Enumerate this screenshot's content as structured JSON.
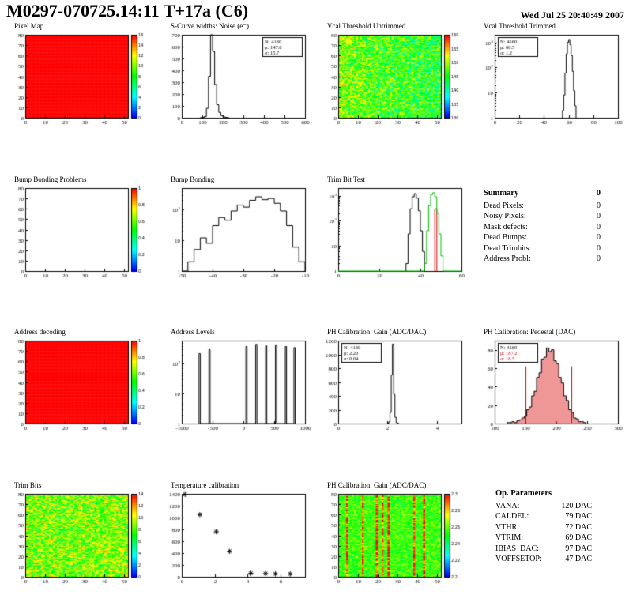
{
  "header": {
    "title": "M0297-070725.14:11 T+17a (C6)",
    "timestamp": "Wed Jul 25 20:40:49 2007"
  },
  "chart_data": [
    {
      "id": "pixel_map",
      "title": "Pixel Map",
      "type": "heatmap",
      "nx": 52,
      "ny": 80,
      "pattern": "flat",
      "seed": 11,
      "x": {
        "min": 0,
        "max": 52,
        "ticks": [
          0,
          10,
          20,
          30,
          40,
          50
        ]
      },
      "y": {
        "min": 0,
        "max": 80,
        "ticks": [
          0,
          10,
          20,
          30,
          40,
          50,
          60,
          70,
          80
        ]
      },
      "colorbar": {
        "labels": [
          "16",
          "14",
          "12",
          "10",
          "8",
          "6",
          "4",
          "2",
          "0"
        ]
      }
    },
    {
      "id": "scurve_noise",
      "title": "S-Curve widths: Noise (e⁻)",
      "type": "hist",
      "x": {
        "min": 0,
        "max": 600,
        "ticks": [
          0,
          100,
          200,
          300,
          400,
          500,
          600
        ]
      },
      "y": {
        "min": 0,
        "max": 700,
        "ticks": [
          0,
          100,
          200,
          300,
          400,
          500,
          600,
          700
        ]
      },
      "series": [
        {
          "color": "#000000",
          "binw": 10,
          "bins": [
            [
              90,
              1
            ],
            [
              100,
              3
            ],
            [
              110,
              10
            ],
            [
              120,
              80
            ],
            [
              130,
              350
            ],
            [
              140,
              700
            ],
            [
              150,
              560
            ],
            [
              160,
              280
            ],
            [
              170,
              110
            ],
            [
              180,
              45
            ],
            [
              190,
              18
            ],
            [
              200,
              8
            ],
            [
              210,
              3
            ],
            [
              220,
              1
            ]
          ]
        }
      ],
      "stats": {
        "pos": "right",
        "lines": [
          {
            "t": "N: 4160"
          },
          {
            "t": "μ: 147.6"
          },
          {
            "t": "σ: 15.7"
          }
        ]
      }
    },
    {
      "id": "vcal_untrimmed",
      "title": "Vcal Threshold Untrimmed",
      "type": "heatmap",
      "nx": 52,
      "ny": 80,
      "pattern": "noise",
      "mean": 0.55,
      "spread": 0.22,
      "grad": -0.12,
      "seed": 7,
      "x": {
        "min": 0,
        "max": 52,
        "ticks": [
          0,
          10,
          20,
          30,
          40,
          50
        ]
      },
      "y": {
        "min": 0,
        "max": 80,
        "ticks": [
          0,
          10,
          20,
          30,
          40,
          50,
          60,
          70,
          80
        ]
      },
      "colorbar": {
        "labels": [
          "160",
          "155",
          "150",
          "145",
          "140",
          "135",
          "130"
        ]
      }
    },
    {
      "id": "vcal_trimmed",
      "title": "Vcal Threshold Trimmed",
      "type": "hist",
      "x": {
        "min": 0,
        "max": 100,
        "ticks": [
          0,
          20,
          40,
          60,
          80,
          100
        ]
      },
      "y": {
        "min": 1,
        "max": 2000,
        "log": true
      },
      "series": [
        {
          "color": "#000000",
          "binw": 1,
          "bins": [
            [
              55,
              2
            ],
            [
              56,
              8
            ],
            [
              57,
              60
            ],
            [
              58,
              350
            ],
            [
              59,
              1000
            ],
            [
              60,
              1300
            ],
            [
              61,
              800
            ],
            [
              62,
              300
            ],
            [
              63,
              70
            ],
            [
              64,
              12
            ],
            [
              65,
              3
            ]
          ]
        }
      ],
      "stats": {
        "pos": "left",
        "lines": [
          {
            "t": "N: 4160"
          },
          {
            "t": "μ: 60.5"
          },
          {
            "t": "σ: 1.2"
          }
        ]
      }
    },
    {
      "id": "bump_problems",
      "title": "Bump Bonding Problems",
      "type": "heatmap",
      "nx": 52,
      "ny": 80,
      "pattern": "empty",
      "seed": 3,
      "x": {
        "min": 0,
        "max": 52,
        "ticks": [
          0,
          10,
          20,
          30,
          40,
          50
        ]
      },
      "y": {
        "min": 0,
        "max": 80,
        "ticks": [
          0,
          10,
          20,
          30,
          40,
          50,
          60,
          70,
          80
        ]
      },
      "colorbar": {
        "labels": [
          "1",
          "0.8",
          "0.6",
          "0.4",
          "0.2",
          "0"
        ]
      }
    },
    {
      "id": "bump_bonding",
      "title": "Bump Bonding",
      "type": "hist",
      "x": {
        "min": -50,
        "max": -10,
        "ticks": [
          -50,
          -40,
          -30,
          -20,
          -10
        ]
      },
      "y": {
        "min": 1,
        "max": 500,
        "log": true
      },
      "series": [
        {
          "color": "#000000",
          "binw": 2,
          "bins": [
            [
              -50,
              1
            ],
            [
              -48,
              2
            ],
            [
              -46,
              5
            ],
            [
              -44,
              12
            ],
            [
              -42,
              8
            ],
            [
              -40,
              30
            ],
            [
              -38,
              55
            ],
            [
              -36,
              45
            ],
            [
              -34,
              90
            ],
            [
              -32,
              140
            ],
            [
              -30,
              120
            ],
            [
              -28,
              200
            ],
            [
              -26,
              260
            ],
            [
              -24,
              210
            ],
            [
              -22,
              230
            ],
            [
              -20,
              160
            ],
            [
              -18,
              90
            ],
            [
              -16,
              30
            ],
            [
              -14,
              6
            ],
            [
              -12,
              2
            ]
          ]
        }
      ]
    },
    {
      "id": "trim_bit_test",
      "title": "Trim Bit Test",
      "type": "hist",
      "x": {
        "min": 0,
        "max": 60,
        "ticks": [
          0,
          20,
          40,
          60
        ]
      },
      "y": {
        "min": 1,
        "max": 2000,
        "log": true
      },
      "series": [
        {
          "color": "#000000",
          "binw": 1,
          "bins": [
            [
              33,
              2
            ],
            [
              34,
              30
            ],
            [
              35,
              300
            ],
            [
              36,
              900
            ],
            [
              37,
              1200
            ],
            [
              38,
              800
            ],
            [
              39,
              250
            ],
            [
              40,
              40
            ],
            [
              41,
              6
            ]
          ]
        },
        {
          "color": "#cc0000",
          "binw": 1,
          "bins": [
            [
              47,
              300
            ]
          ]
        },
        {
          "color": "#00bb00",
          "binw": 1,
          "baseline": true,
          "bins": [
            [
              42,
              2
            ],
            [
              43,
              40
            ],
            [
              44,
              400
            ],
            [
              45,
              1100
            ],
            [
              46,
              1300
            ],
            [
              47,
              900
            ],
            [
              48,
              200
            ],
            [
              49,
              30
            ],
            [
              50,
              4
            ]
          ]
        }
      ]
    },
    {
      "id": "address_decoding",
      "title": "Address decoding",
      "type": "heatmap",
      "nx": 52,
      "ny": 80,
      "pattern": "flat",
      "seed": 19,
      "x": {
        "min": 0,
        "max": 52,
        "ticks": [
          0,
          10,
          20,
          30,
          40,
          50
        ]
      },
      "y": {
        "min": 0,
        "max": 80,
        "ticks": [
          0,
          10,
          20,
          30,
          40,
          50,
          60,
          70,
          80
        ]
      },
      "colorbar": {
        "labels": [
          "1",
          "0.8",
          "0.6",
          "0.4",
          "0.2",
          "0"
        ]
      }
    },
    {
      "id": "address_levels",
      "title": "Address Levels",
      "type": "hist",
      "x": {
        "min": -1000,
        "max": 1000,
        "ticks": [
          -1000,
          -500,
          0,
          500,
          1000
        ]
      },
      "y": {
        "min": 1,
        "max": 600,
        "log": true
      },
      "series": [
        {
          "color": "#000000",
          "binw": 20,
          "bins": [
            [
              -720,
              220
            ],
            [
              -560,
              300
            ],
            [
              40,
              380
            ],
            [
              200,
              450
            ],
            [
              360,
              400
            ],
            [
              520,
              430
            ],
            [
              680,
              380
            ],
            [
              820,
              350
            ]
          ]
        }
      ]
    },
    {
      "id": "ph_gain_hist",
      "title": "PH Calibration: Gain (ADC/DAC)",
      "type": "hist",
      "x": {
        "min": 0,
        "max": 5,
        "ticks": [
          0,
          2,
          4
        ]
      },
      "y": {
        "min": 0,
        "max": 1200,
        "ticks": [
          0,
          200,
          400,
          600,
          800,
          1000,
          1200
        ]
      },
      "series": [
        {
          "color": "#000000",
          "binw": 0.05,
          "bins": [
            [
              2.0,
              3
            ],
            [
              2.05,
              25
            ],
            [
              2.1,
              160
            ],
            [
              2.15,
              700
            ],
            [
              2.2,
              1150
            ],
            [
              2.25,
              420
            ],
            [
              2.3,
              90
            ],
            [
              2.35,
              15
            ],
            [
              2.4,
              4
            ]
          ]
        }
      ],
      "stats": {
        "pos": "left",
        "lines": [
          {
            "t": "N: 4160"
          },
          {
            "t": "μ: 2.20"
          },
          {
            "t": "σ: 0.04"
          }
        ]
      }
    },
    {
      "id": "ph_pedestal",
      "title": "PH Calibration: Pedestal (DAC)",
      "type": "hist",
      "x": {
        "min": 100,
        "max": 300,
        "ticks": [
          100,
          150,
          200,
          250,
          300
        ]
      },
      "y": {
        "min": 0,
        "max": 90,
        "ticks": [
          0,
          20,
          40,
          60,
          80
        ]
      },
      "series": [
        {
          "color": "#000000",
          "binw": 4,
          "fill": "rgba(226,64,64,0.55)",
          "bins": [
            [
              120,
              1
            ],
            [
              124,
              1
            ],
            [
              128,
              2
            ],
            [
              132,
              1
            ],
            [
              136,
              3
            ],
            [
              140,
              4
            ],
            [
              144,
              6
            ],
            [
              148,
              8
            ],
            [
              152,
              15
            ],
            [
              156,
              18
            ],
            [
              160,
              30
            ],
            [
              164,
              35
            ],
            [
              168,
              50
            ],
            [
              172,
              55
            ],
            [
              176,
              70
            ],
            [
              180,
              72
            ],
            [
              184,
              82
            ],
            [
              188,
              78
            ],
            [
              192,
              80
            ],
            [
              196,
              68
            ],
            [
              200,
              65
            ],
            [
              204,
              50
            ],
            [
              208,
              44
            ],
            [
              212,
              30
            ],
            [
              216,
              25
            ],
            [
              220,
              15
            ],
            [
              224,
              12
            ],
            [
              228,
              6
            ],
            [
              232,
              5
            ],
            [
              236,
              2
            ],
            [
              240,
              2
            ],
            [
              244,
              1
            ]
          ]
        }
      ],
      "markers": [
        {
          "x": 150,
          "h": 62,
          "color": "#cc0000"
        },
        {
          "x": 224,
          "h": 62,
          "color": "#cc0000"
        }
      ],
      "stats": {
        "pos": "left",
        "lines": [
          {
            "t": "N: 4160"
          },
          {
            "t": "μ: 187.2",
            "c": "#cc0000"
          },
          {
            "t": "σ: 18.5",
            "c": "#cc0000"
          }
        ]
      }
    },
    {
      "id": "trim_bits_map",
      "title": "Trim Bits",
      "type": "heatmap",
      "nx": 52,
      "ny": 80,
      "pattern": "noise",
      "mean": 0.62,
      "spread": 0.2,
      "grad": 0,
      "seed": 23,
      "x": {
        "min": 0,
        "max": 52,
        "ticks": [
          0,
          10,
          20,
          30,
          40,
          50
        ]
      },
      "y": {
        "min": 0,
        "max": 80,
        "ticks": [
          0,
          10,
          20,
          30,
          40,
          50,
          60,
          70,
          80
        ]
      },
      "colorbar": {
        "labels": [
          "14",
          "12",
          "10",
          "8",
          "6",
          "4",
          "2",
          "0"
        ]
      }
    },
    {
      "id": "temp_calibration",
      "title": "Temperature calibration",
      "type": "scatter",
      "x": {
        "min": 0,
        "max": 7.5,
        "ticks": [
          0,
          2,
          4,
          6
        ]
      },
      "y": {
        "min": 0,
        "max": 1400,
        "ticks": [
          0,
          200,
          400,
          600,
          800,
          1000,
          1200,
          1400
        ]
      },
      "points": [
        [
          0.2,
          1390
        ],
        [
          1.1,
          1050
        ],
        [
          2.1,
          760
        ],
        [
          2.9,
          430
        ],
        [
          4.2,
          60
        ],
        [
          5.1,
          55
        ],
        [
          5.7,
          50
        ],
        [
          6.6,
          48
        ]
      ]
    },
    {
      "id": "ph_gain_map",
      "title": "PH Calibration: Gain (ADC/DAC)",
      "type": "heatmap",
      "nx": 52,
      "ny": 80,
      "pattern": "stripes",
      "mean": 0.55,
      "spread": 0.12,
      "grad": 0,
      "seed": 5,
      "x": {
        "min": 0,
        "max": 52,
        "ticks": [
          0,
          10,
          20,
          30,
          40,
          50
        ]
      },
      "y": {
        "min": 0,
        "max": 80,
        "ticks": [
          0,
          10,
          20,
          30,
          40,
          50,
          60,
          70,
          80
        ]
      },
      "colorbar": {
        "labels": [
          "2.3",
          "2.28",
          "2.26",
          "2.24",
          "2.22",
          "2.2"
        ]
      }
    }
  ],
  "summary": {
    "title": "Summary",
    "total": "0",
    "rows": [
      {
        "label": "Dead Pixels:",
        "value": "0"
      },
      {
        "label": "Noisy Pixels:",
        "value": "0"
      },
      {
        "label": "Mask defects:",
        "value": "0"
      },
      {
        "label": "Dead Bumps:",
        "value": "0"
      },
      {
        "label": "Dead Trimbits:",
        "value": "0"
      },
      {
        "label": "Address Probl:",
        "value": "0"
      }
    ]
  },
  "op_parameters": {
    "title": "Op. Parameters",
    "rows": [
      {
        "label": "VANA:",
        "value": "120 DAC"
      },
      {
        "label": "CALDEL:",
        "value": "79 DAC"
      },
      {
        "label": "VTHR:",
        "value": "72 DAC"
      },
      {
        "label": "VTRIM:",
        "value": "69 DAC"
      },
      {
        "label": "IBIAS_DAC:",
        "value": "97 DAC"
      },
      {
        "label": "VOFFSETOP:",
        "value": "47 DAC"
      }
    ]
  }
}
